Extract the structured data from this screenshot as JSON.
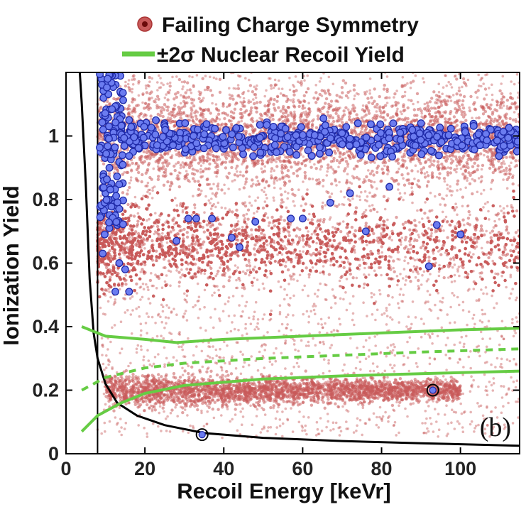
{
  "chart_data": {
    "type": "scatter",
    "xlabel": "Recoil Energy [keVr]",
    "ylabel": "Ionization Yield",
    "xlim": [
      0,
      115
    ],
    "ylim": [
      0,
      1.2
    ],
    "x_ticks": [
      "0",
      "20",
      "40",
      "60",
      "80",
      "100"
    ],
    "y_ticks": [
      "0",
      "0.2",
      "0.4",
      "0.6",
      "0.8",
      "1"
    ],
    "grid": false,
    "legend_position": "top",
    "panel_label": "(b)",
    "colors": {
      "failing": "#c85a5a",
      "failing_edge": "#8b1a1a",
      "passing": "#6b7cf0",
      "passing_edge": "#1f2aa8",
      "band": "#66cc44",
      "threshold": "#000000"
    },
    "legend": [
      {
        "label": "Failing Charge Symmetry",
        "marker": "circle",
        "color": "#c85a5a"
      },
      {
        "label": "±2σ Nuclear Recoil Yield",
        "marker": "line",
        "color": "#66cc44"
      }
    ],
    "series": [
      {
        "name": "Failing Charge Symmetry",
        "kind": "dense-scatter",
        "populations": [
          {
            "x_range": [
              8,
              115
            ],
            "y_center": 0.66,
            "y_spread": 0.1
          },
          {
            "x_range": [
              8,
              115
            ],
            "y_center": 1.0,
            "y_spread": 0.12
          },
          {
            "x_range": [
              10,
              100
            ],
            "y_center": 0.2,
            "y_spread": 0.04
          }
        ]
      },
      {
        "kind": "scatter",
        "points": [
          {
            "x": 9,
            "y": 1.18
          },
          {
            "x": 9.5,
            "y": 1.12
          },
          {
            "x": 10,
            "y": 1.05
          },
          {
            "x": 10.5,
            "y": 0.95
          },
          {
            "x": 11,
            "y": 0.9
          },
          {
            "x": 11.5,
            "y": 0.85
          },
          {
            "x": 12,
            "y": 0.8
          },
          {
            "x": 12.5,
            "y": 0.75
          },
          {
            "x": 13,
            "y": 0.72
          },
          {
            "x": 9,
            "y": 0.97
          },
          {
            "x": 9.5,
            "y": 0.88
          },
          {
            "x": 10,
            "y": 0.82
          },
          {
            "x": 10.5,
            "y": 0.78
          },
          {
            "x": 11,
            "y": 0.71
          },
          {
            "x": 9.3,
            "y": 0.63
          },
          {
            "x": 9.8,
            "y": 0.69
          },
          {
            "x": 12.5,
            "y": 0.51
          },
          {
            "x": 16,
            "y": 0.51
          },
          {
            "x": 13.5,
            "y": 0.6
          },
          {
            "x": 15,
            "y": 0.58
          },
          {
            "x": 14,
            "y": 1.02
          },
          {
            "x": 15,
            "y": 0.98
          },
          {
            "x": 16,
            "y": 1.05
          },
          {
            "x": 17,
            "y": 0.95
          },
          {
            "x": 18,
            "y": 1.0
          },
          {
            "x": 20,
            "y": 0.97
          },
          {
            "x": 22,
            "y": 1.02
          },
          {
            "x": 24,
            "y": 0.96
          },
          {
            "x": 25,
            "y": 1.04
          },
          {
            "x": 27,
            "y": 0.98
          },
          {
            "x": 28,
            "y": 0.67
          },
          {
            "x": 30,
            "y": 1.01
          },
          {
            "x": 31,
            "y": 0.74
          },
          {
            "x": 32,
            "y": 0.97
          },
          {
            "x": 33,
            "y": 0.74
          },
          {
            "x": 35,
            "y": 1.03
          },
          {
            "x": 37,
            "y": 0.74
          },
          {
            "x": 38,
            "y": 0.99
          },
          {
            "x": 40,
            "y": 0.96
          },
          {
            "x": 42,
            "y": 0.68
          },
          {
            "x": 43,
            "y": 1.02
          },
          {
            "x": 44,
            "y": 0.65
          },
          {
            "x": 46,
            "y": 0.98
          },
          {
            "x": 48,
            "y": 0.73
          },
          {
            "x": 50,
            "y": 1.0
          },
          {
            "x": 52,
            "y": 0.95
          },
          {
            "x": 55,
            "y": 1.03
          },
          {
            "x": 57,
            "y": 0.74
          },
          {
            "x": 58,
            "y": 0.97
          },
          {
            "x": 60,
            "y": 0.74
          },
          {
            "x": 62,
            "y": 1.01
          },
          {
            "x": 65,
            "y": 0.96
          },
          {
            "x": 67,
            "y": 0.79
          },
          {
            "x": 68,
            "y": 1.02
          },
          {
            "x": 70,
            "y": 0.98
          },
          {
            "x": 72,
            "y": 0.82
          },
          {
            "x": 74,
            "y": 1.04
          },
          {
            "x": 76,
            "y": 0.7
          },
          {
            "x": 78,
            "y": 0.97
          },
          {
            "x": 80,
            "y": 1.0
          },
          {
            "x": 82,
            "y": 0.84
          },
          {
            "x": 84,
            "y": 0.96
          },
          {
            "x": 86,
            "y": 1.02
          },
          {
            "x": 88,
            "y": 0.98
          },
          {
            "x": 90,
            "y": 1.04
          },
          {
            "x": 92,
            "y": 0.59
          },
          {
            "x": 93,
            "y": 0.95
          },
          {
            "x": 94,
            "y": 0.72
          },
          {
            "x": 96,
            "y": 1.0
          },
          {
            "x": 98,
            "y": 0.97
          },
          {
            "x": 100,
            "y": 0.69
          },
          {
            "x": 101,
            "y": 1.03
          },
          {
            "x": 103,
            "y": 0.96
          },
          {
            "x": 105,
            "y": 1.01
          },
          {
            "x": 107,
            "y": 0.98
          },
          {
            "x": 109,
            "y": 1.02
          },
          {
            "x": 111,
            "y": 0.95
          },
          {
            "x": 113,
            "y": 1.0
          }
        ]
      }
    ],
    "band_curves": {
      "upper": [
        [
          4,
          0.4
        ],
        [
          10,
          0.37
        ],
        [
          20,
          0.36
        ],
        [
          28,
          0.35
        ],
        [
          40,
          0.36
        ],
        [
          60,
          0.37
        ],
        [
          80,
          0.38
        ],
        [
          100,
          0.39
        ],
        [
          115,
          0.395
        ]
      ],
      "center": [
        [
          4,
          0.2
        ],
        [
          10,
          0.24
        ],
        [
          20,
          0.27
        ],
        [
          30,
          0.285
        ],
        [
          50,
          0.3
        ],
        [
          70,
          0.31
        ],
        [
          90,
          0.32
        ],
        [
          115,
          0.33
        ]
      ],
      "lower": [
        [
          4,
          0.07
        ],
        [
          8,
          0.12
        ],
        [
          14,
          0.16
        ],
        [
          20,
          0.19
        ],
        [
          30,
          0.215
        ],
        [
          50,
          0.235
        ],
        [
          70,
          0.245
        ],
        [
          90,
          0.252
        ],
        [
          115,
          0.26
        ]
      ]
    },
    "threshold": {
      "vertical_x": 8,
      "curve": [
        [
          3.5,
          1.2
        ],
        [
          4,
          1.1
        ],
        [
          5,
          0.85
        ],
        [
          6,
          0.55
        ],
        [
          7,
          0.38
        ],
        [
          8,
          0.3
        ],
        [
          10,
          0.22
        ],
        [
          13,
          0.16
        ],
        [
          18,
          0.12
        ],
        [
          25,
          0.09
        ],
        [
          35,
          0.065
        ],
        [
          50,
          0.05
        ],
        [
          70,
          0.04
        ],
        [
          90,
          0.033
        ],
        [
          115,
          0.025
        ]
      ]
    },
    "highlighted_events": [
      {
        "x": 34.5,
        "y": 0.06
      },
      {
        "x": 93,
        "y": 0.2
      }
    ]
  }
}
